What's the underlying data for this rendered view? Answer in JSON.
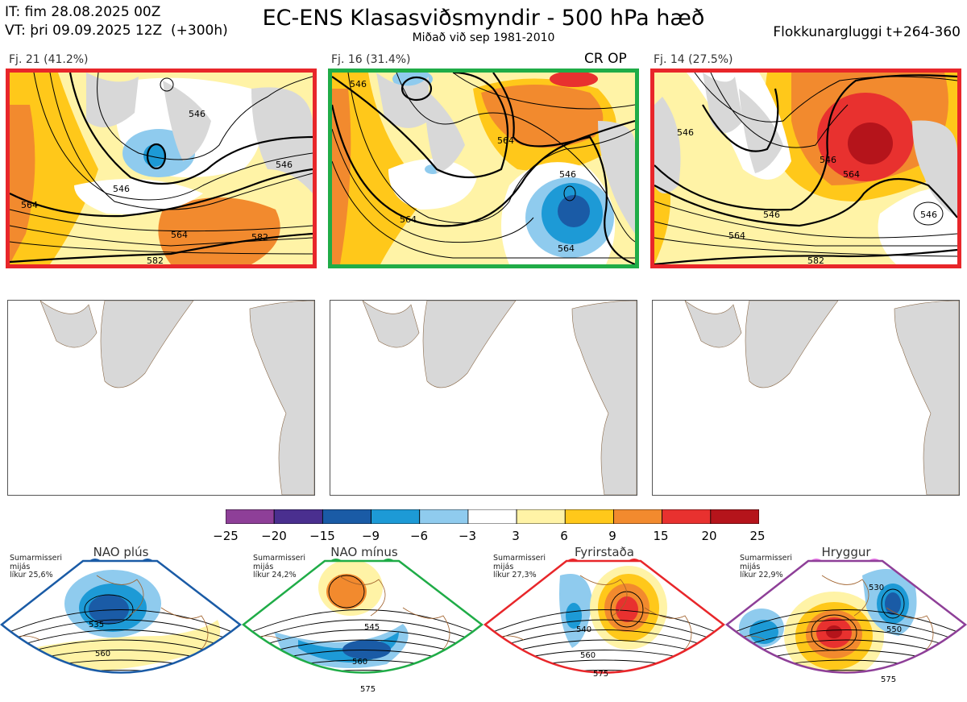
{
  "header": {
    "it_line": "IT: fim 28.08.2025 00Z",
    "vt_line": "VT: þri 09.09.2025 12Z  (+300h)",
    "title": "EC-ENS Klasasviðsmyndir - 500 hPa hæð",
    "subtitle": "Miðað við sep 1981-2010",
    "window": "Flokkunargluggi t+264-360"
  },
  "clusters": [
    {
      "label": "Fj. 21 (41.2%)",
      "frame_color": "#e8262a",
      "contours": [
        "546",
        "564",
        "582",
        "564",
        "546",
        "546",
        "582"
      ]
    },
    {
      "label": "Fj. 16 (31.4%)",
      "frame_color": "#1fac47",
      "tag": "CR OP",
      "contours": [
        "564",
        "546",
        "564",
        "564",
        "546"
      ]
    },
    {
      "label": "Fj. 14 (27.5%)",
      "frame_color": "#e8262a",
      "contours": [
        "546",
        "546",
        "564",
        "546",
        "564",
        "582",
        "546"
      ]
    }
  ],
  "colorbar": {
    "ticks": [
      "−25",
      "−20",
      "−15",
      "−9",
      "−6",
      "−3",
      "3",
      "6",
      "9",
      "15",
      "20",
      "25"
    ],
    "colors": [
      "#8e3f98",
      "#4a2f8f",
      "#1a5ba6",
      "#1d9ad6",
      "#8fcbee",
      "#ffffff",
      "#fff3a6",
      "#ffc81a",
      "#f28a2e",
      "#e8312f",
      "#b5141b"
    ]
  },
  "regimes": [
    {
      "name": "NAO plús",
      "note": "Sumarmisseri\nmijás\nlíkur 25,6%",
      "color": "#1a5ba6",
      "contours": [
        "535",
        "560"
      ]
    },
    {
      "name": "NAO mínus",
      "note": "Sumarmisseri\nmijás\nlíkur 24,2%",
      "color": "#1fac47",
      "contours": [
        "545",
        "560",
        "575"
      ]
    },
    {
      "name": "Fyrirstaða",
      "note": "Sumarmisseri\nmijás\nlíkur 27,3%",
      "color": "#e8262a",
      "contours": [
        "540",
        "560",
        "575"
      ]
    },
    {
      "name": "Hryggur",
      "note": "Sumarmisseri\nmijás\nlíkur 22,9%",
      "color": "#e879e8",
      "contours": [
        "530",
        "550",
        "575"
      ]
    }
  ]
}
